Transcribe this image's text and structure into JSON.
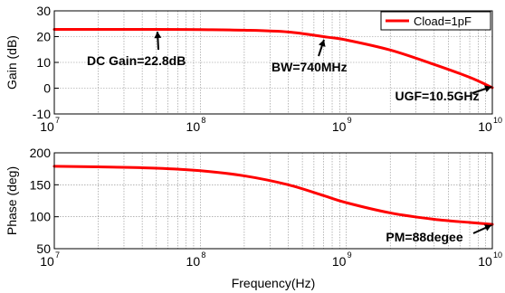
{
  "chart_data": [
    {
      "type": "line",
      "ylabel": "Gain (dB)",
      "xscale": "log",
      "xlim": [
        10000000,
        10000000000
      ],
      "ylim": [
        -10,
        30
      ],
      "yticks": [
        "-10",
        "0",
        "10",
        "20",
        "30"
      ],
      "xticks": [
        {
          "base": "10",
          "exp": "7"
        },
        {
          "base": "10",
          "exp": "8"
        },
        {
          "base": "10",
          "exp": "9"
        },
        {
          "base": "10",
          "exp": "10"
        }
      ],
      "grid": true,
      "legend": {
        "position": "top-right",
        "entries": [
          "Cload=1pF"
        ]
      },
      "series": [
        {
          "name": "Cload=1pF",
          "color": "#ff0000",
          "x": [
            10000000,
            20000000,
            50000000,
            100000000,
            200000000,
            400000000,
            740000000,
            1000000000,
            2000000000,
            4000000000,
            7000000000,
            10000000000
          ],
          "y": [
            22.8,
            22.8,
            22.8,
            22.7,
            22.5,
            21.8,
            19.8,
            18.7,
            14.8,
            9.2,
            4.2,
            0.2
          ]
        }
      ],
      "annotations": [
        {
          "label": "DC Gain=22.8dB",
          "x": 55000000,
          "y": 22.8
        },
        {
          "label": "BW=740MHz",
          "x": 740000000,
          "y": 19.8
        },
        {
          "label": "UGF=10.5GHz",
          "x": 10000000000,
          "y": 0.2
        }
      ]
    },
    {
      "type": "line",
      "xlabel": "Frequency(Hz)",
      "ylabel": "Phase (deg)",
      "xscale": "log",
      "xlim": [
        10000000,
        10000000000
      ],
      "ylim": [
        50,
        200
      ],
      "yticks": [
        "50",
        "100",
        "150",
        "200"
      ],
      "xticks": [
        {
          "base": "10",
          "exp": "7"
        },
        {
          "base": "10",
          "exp": "8"
        },
        {
          "base": "10",
          "exp": "9"
        },
        {
          "base": "10",
          "exp": "10"
        }
      ],
      "grid": true,
      "series": [
        {
          "color": "#ff0000",
          "x": [
            10000000,
            20000000,
            50000000,
            100000000,
            200000000,
            400000000,
            700000000,
            1000000000,
            2000000000,
            4000000000,
            7000000000,
            10000000000
          ],
          "y": [
            179,
            178,
            176,
            172,
            164,
            150,
            133,
            122,
            106,
            96,
            91,
            88
          ]
        }
      ],
      "annotations": [
        {
          "label": "PM=88degee",
          "x": 10000000000,
          "y": 88
        }
      ]
    }
  ]
}
